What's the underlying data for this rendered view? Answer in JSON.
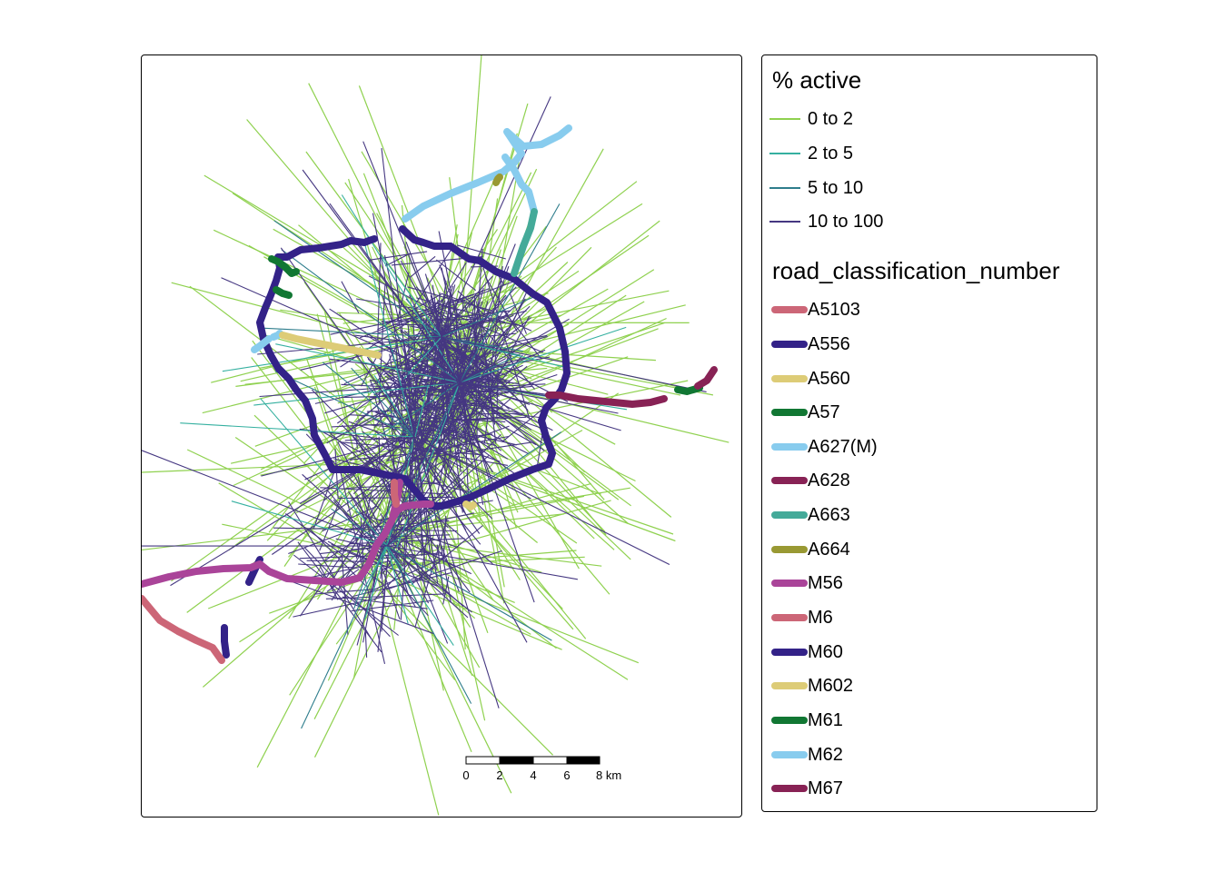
{
  "legend": {
    "active_title": "% active",
    "active_items": [
      {
        "label": "0 to 2",
        "color": "#8fd14f"
      },
      {
        "label": "2 to 5",
        "color": "#35b0a0"
      },
      {
        "label": "5 to 10",
        "color": "#2e7d8c"
      },
      {
        "label": "10 to 100",
        "color": "#453781"
      }
    ],
    "road_title": "road_classification_number",
    "road_items": [
      {
        "label": "A5103",
        "color": "#cc6677"
      },
      {
        "label": "A556",
        "color": "#332288"
      },
      {
        "label": "A560",
        "color": "#ddcc77"
      },
      {
        "label": "A57",
        "color": "#117733"
      },
      {
        "label": "A627(M)",
        "color": "#88ccee"
      },
      {
        "label": "A628",
        "color": "#882255"
      },
      {
        "label": "A663",
        "color": "#44aa99"
      },
      {
        "label": "A664",
        "color": "#999933"
      },
      {
        "label": "M56",
        "color": "#aa4499"
      },
      {
        "label": "M6",
        "color": "#cc6677"
      },
      {
        "label": "M60",
        "color": "#332288"
      },
      {
        "label": "M602",
        "color": "#ddcc77"
      },
      {
        "label": "M61",
        "color": "#117733"
      },
      {
        "label": "M62",
        "color": "#88ccee"
      },
      {
        "label": "M67",
        "color": "#882255"
      }
    ]
  },
  "scalebar": {
    "ticks": [
      "0",
      "2",
      "4",
      "6",
      "8 km"
    ]
  }
}
